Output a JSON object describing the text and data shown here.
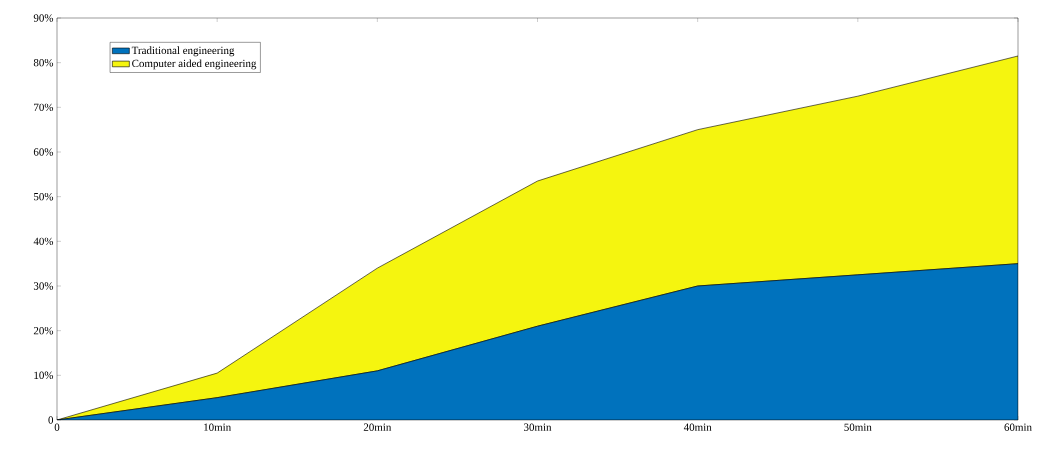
{
  "chart_data": {
    "type": "area",
    "stacked": true,
    "x": [
      0,
      10,
      20,
      30,
      40,
      50,
      60
    ],
    "series": [
      {
        "name": "Traditional engineering",
        "color": "#0072bd",
        "values": [
          0,
          5,
          11,
          21,
          30,
          32.5,
          35
        ]
      },
      {
        "name": "Computer aided engineering",
        "color": "#f5f50f",
        "values": [
          0,
          5.5,
          23,
          32.5,
          35,
          40,
          46.5
        ]
      }
    ],
    "xlim": [
      0,
      60
    ],
    "xticks": [
      0,
      {
        "value": 10,
        "label": "10min"
      },
      {
        "value": 20,
        "label": "20min"
      },
      {
        "value": 30,
        "label": "30min"
      },
      {
        "value": 40,
        "label": "40min"
      },
      {
        "value": 50,
        "label": "50min"
      },
      {
        "value": 60,
        "label": "60min"
      }
    ],
    "ylim": [
      0,
      90
    ],
    "yticks": [
      0,
      {
        "value": 10,
        "label": "10%"
      },
      {
        "value": 20,
        "label": "20%"
      },
      {
        "value": 30,
        "label": "30%"
      },
      {
        "value": 40,
        "label": "40%"
      },
      {
        "value": 50,
        "label": "50%"
      },
      {
        "value": 60,
        "label": "60%"
      },
      {
        "value": 70,
        "label": "70%"
      },
      {
        "value": 80,
        "label": "80%"
      },
      {
        "value": 90,
        "label": "90%"
      }
    ],
    "legend": "top left"
  }
}
